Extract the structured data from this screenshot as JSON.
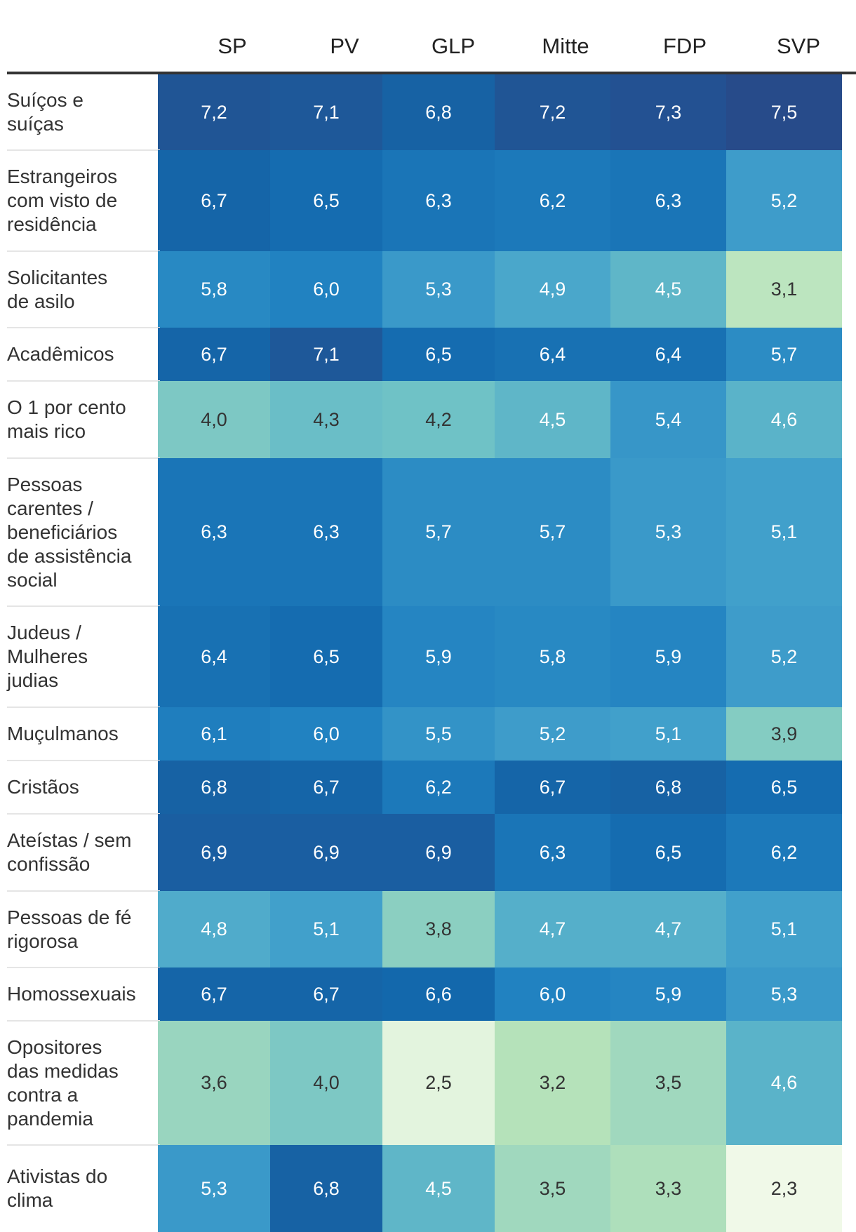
{
  "chart_data": {
    "type": "heatmap",
    "columns": [
      "SP",
      "PV",
      "GLP",
      "Mitte",
      "FDP",
      "SVP"
    ],
    "rows": [
      {
        "label": "Suíços e\nsuíças",
        "values": [
          "7,2",
          "7,1",
          "6,8",
          "7,2",
          "7,3",
          "7,5"
        ]
      },
      {
        "label": "Estrangeiros\ncom visto de\nresidência",
        "values": [
          "6,7",
          "6,5",
          "6,3",
          "6,2",
          "6,3",
          "5,2"
        ]
      },
      {
        "label": "Solicitantes\nde asilo",
        "values": [
          "5,8",
          "6,0",
          "5,3",
          "4,9",
          "4,5",
          "3,1"
        ]
      },
      {
        "label": "Acadêmicos",
        "values": [
          "6,7",
          "7,1",
          "6,5",
          "6,4",
          "6,4",
          "5,7"
        ]
      },
      {
        "label": "O 1 por cento\nmais rico",
        "values": [
          "4,0",
          "4,3",
          "4,2",
          "4,5",
          "5,4",
          "4,6"
        ]
      },
      {
        "label": "Pessoas\ncarentes /\nbeneficiários\nde assistência\nsocial",
        "values": [
          "6,3",
          "6,3",
          "5,7",
          "5,7",
          "5,3",
          "5,1"
        ]
      },
      {
        "label": "Judeus /\nMulheres\njudias",
        "values": [
          "6,4",
          "6,5",
          "5,9",
          "5,8",
          "5,9",
          "5,2"
        ]
      },
      {
        "label": "Muçulmanos",
        "values": [
          "6,1",
          "6,0",
          "5,5",
          "5,2",
          "5,1",
          "3,9"
        ]
      },
      {
        "label": "Cristãos",
        "values": [
          "6,8",
          "6,7",
          "6,2",
          "6,7",
          "6,8",
          "6,5"
        ]
      },
      {
        "label": "Ateístas / sem\nconfissão",
        "values": [
          "6,9",
          "6,9",
          "6,9",
          "6,3",
          "6,5",
          "6,2"
        ]
      },
      {
        "label": "Pessoas de fé\nrigorosa",
        "values": [
          "4,8",
          "5,1",
          "3,8",
          "4,7",
          "4,7",
          "5,1"
        ]
      },
      {
        "label": "Homossexuais",
        "values": [
          "6,7",
          "6,7",
          "6,6",
          "6,0",
          "5,9",
          "5,3"
        ]
      },
      {
        "label": "Opositores\ndas medidas\ncontra a\npandemia",
        "values": [
          "3,6",
          "4,0",
          "2,5",
          "3,2",
          "3,5",
          "4,6"
        ]
      },
      {
        "label": "Ativistas do\nclima",
        "values": [
          "5,3",
          "6,8",
          "4,5",
          "3,5",
          "3,3",
          "2,3"
        ]
      }
    ],
    "color_scale": {
      "stops": [
        {
          "value": 2.3,
          "color": "#f0f9e8"
        },
        {
          "value": 3.2,
          "color": "#b5e2ba"
        },
        {
          "value": 4.2,
          "color": "#6fc2c6"
        },
        {
          "value": 5.0,
          "color": "#45a3cc"
        },
        {
          "value": 6.0,
          "color": "#2182c1"
        },
        {
          "value": 6.6,
          "color": "#1368ac"
        },
        {
          "value": 7.5,
          "color": "#274b8a"
        }
      ],
      "light_text_color": "#ffffff",
      "dark_text_color": "#333333",
      "light_text_from": 4.5
    }
  }
}
